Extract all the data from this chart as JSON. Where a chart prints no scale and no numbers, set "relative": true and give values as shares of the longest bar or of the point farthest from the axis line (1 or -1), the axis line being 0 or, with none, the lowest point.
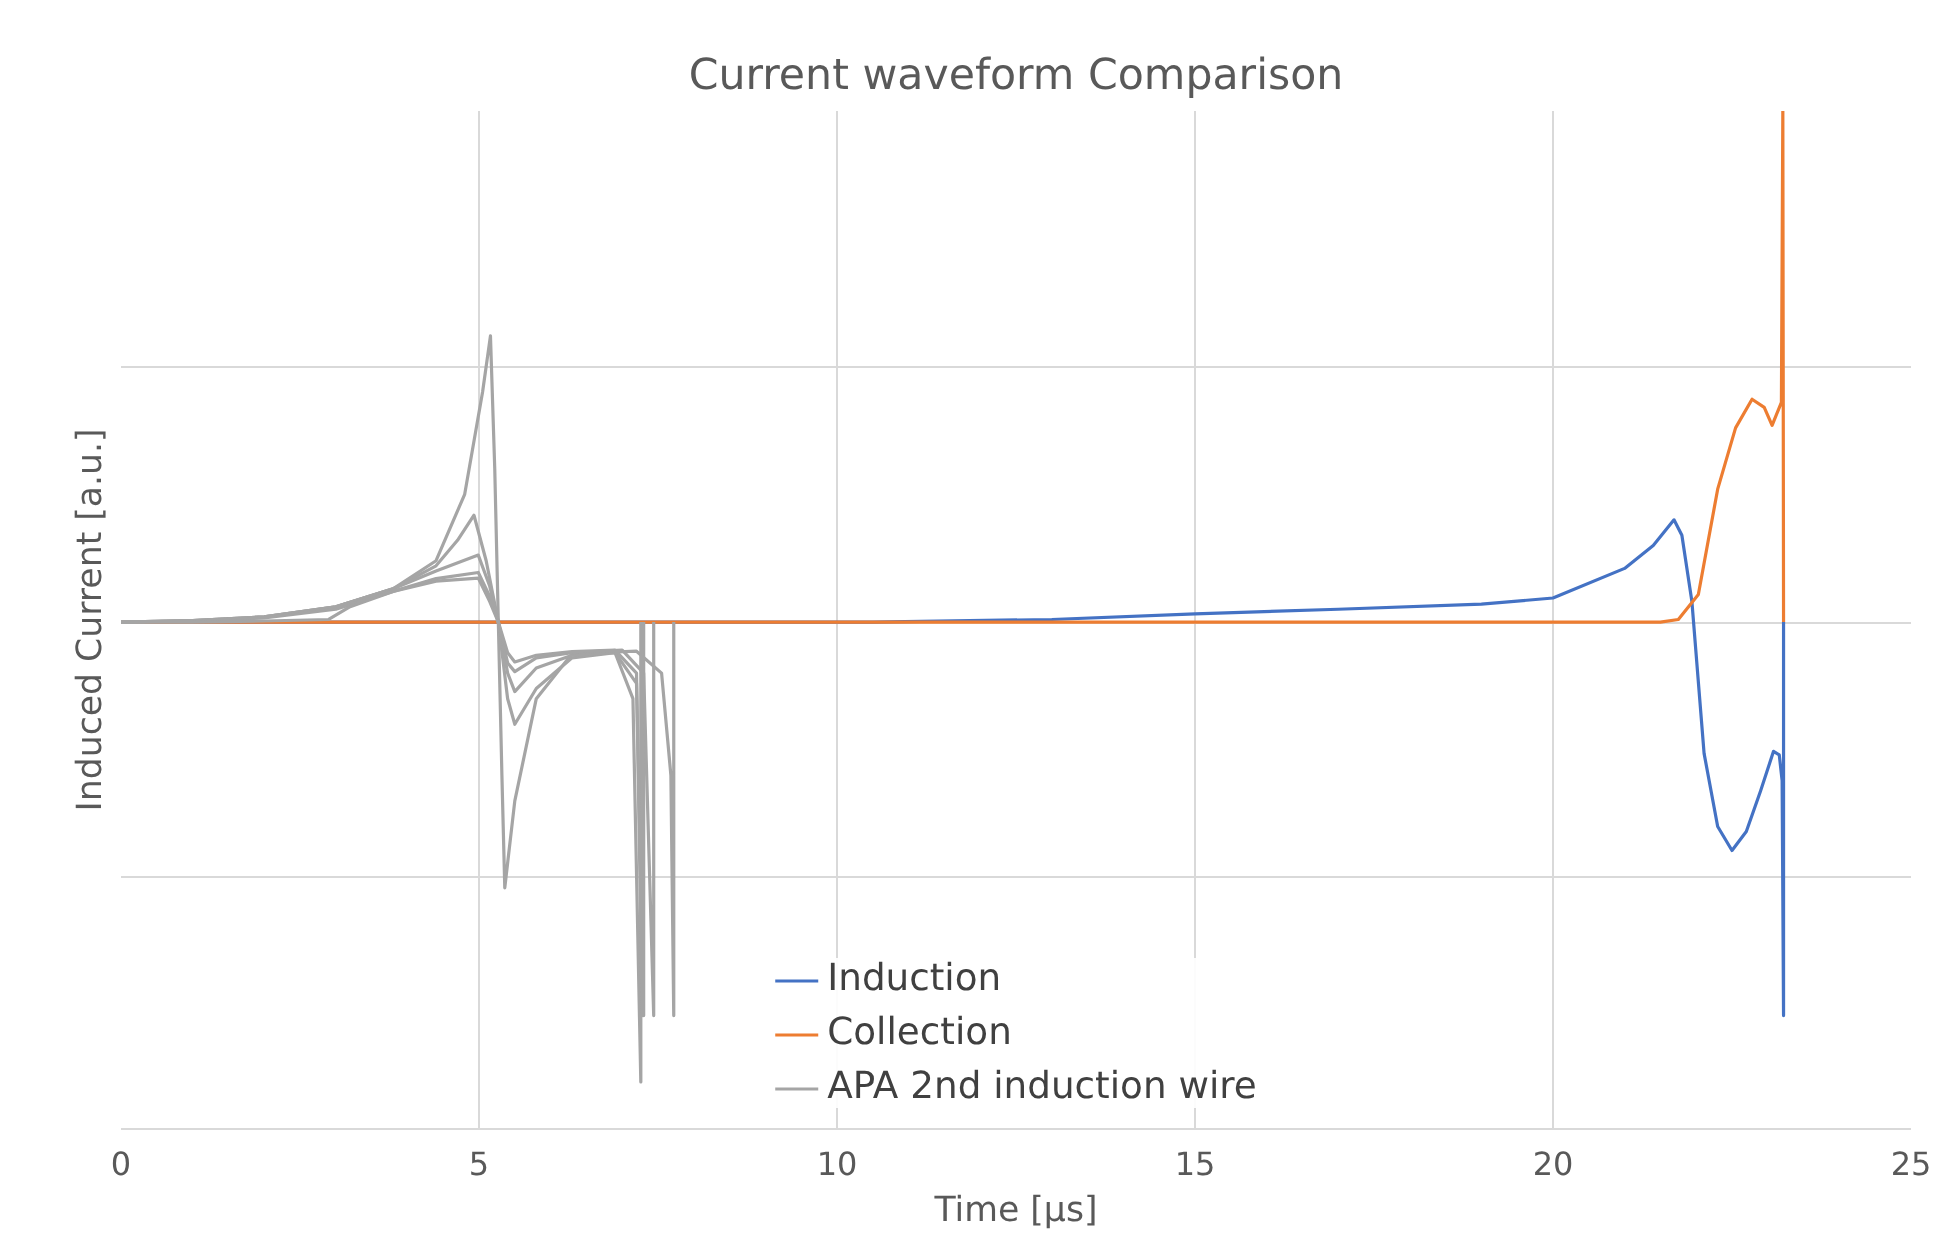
{
  "chart_data": {
    "type": "line",
    "title": "Current waveform Comparison",
    "xlabel": "Time [µs]",
    "ylabel": "Induced Current [a.u.]",
    "relative": true,
    "xlim": [
      0,
      25
    ],
    "xticks": [
      0,
      5,
      10,
      15,
      20,
      25
    ],
    "grid": true,
    "legend": "bottom",
    "line_style": "solid",
    "series": [
      {
        "name": "Induction",
        "color": "#4472c4",
        "x": [
          0,
          10.5,
          13,
          15,
          17,
          19,
          20,
          21,
          21.4,
          21.69,
          21.8,
          21.94,
          22.11,
          22.3,
          22.5,
          22.7,
          22.9,
          23.08,
          23.16,
          23.2,
          23.22,
          23.22
        ],
        "values": [
          0,
          0,
          0.005,
          0.016,
          0.025,
          0.035,
          0.047,
          0.105,
          0.15,
          0.2,
          0.17,
          0.04,
          -0.257,
          -0.4,
          -0.447,
          -0.41,
          -0.33,
          -0.253,
          -0.26,
          -0.31,
          -0.77,
          0
        ]
      },
      {
        "name": "Collection",
        "color": "#ed7d31",
        "x": [
          0,
          21.5,
          21.75,
          22.03,
          22.3,
          22.55,
          22.78,
          22.95,
          23.06,
          23.19,
          23.21,
          23.22
        ],
        "values": [
          0,
          0,
          0.005,
          0.054,
          0.26,
          0.38,
          0.436,
          0.42,
          0.385,
          0.43,
          1.0,
          0
        ]
      },
      {
        "name": "APA 2nd induction wire",
        "color": "#a5a5a5",
        "x": [
          0,
          1,
          2,
          3,
          3.8,
          4.4,
          4.8,
          5.05,
          5.16,
          5.22,
          5.27,
          5.32,
          5.36,
          5.5,
          5.8,
          6.3,
          7.2,
          7.55,
          7.68,
          7.72,
          7.72
        ],
        "values": [
          0,
          0.003,
          0.01,
          0.03,
          0.065,
          0.12,
          0.25,
          0.45,
          0.56,
          0.3,
          0,
          -0.3,
          -0.52,
          -0.35,
          -0.15,
          -0.062,
          -0.057,
          -0.1,
          -0.3,
          -0.77,
          0
        ]
      },
      {
        "color": "#a5a5a5",
        "x": [
          0,
          1,
          2,
          3,
          3.8,
          4.4,
          4.7,
          4.93,
          5.1,
          5.27,
          5.4,
          5.5,
          5.8,
          6.3,
          6.9,
          7.15,
          7.26,
          7.26
        ],
        "values": [
          0,
          0.003,
          0.01,
          0.03,
          0.065,
          0.11,
          0.16,
          0.209,
          0.12,
          0,
          -0.15,
          -0.2,
          -0.13,
          -0.07,
          -0.06,
          -0.15,
          -0.9,
          0
        ]
      },
      {
        "color": "#a5a5a5",
        "x": [
          0,
          1,
          2,
          3,
          3.8,
          4.4,
          4.99,
          5.15,
          5.27,
          5.4,
          5.5,
          5.8,
          6.3,
          6.9,
          7.2,
          7.3,
          7.3
        ],
        "values": [
          0,
          0.003,
          0.01,
          0.03,
          0.065,
          0.1,
          0.131,
          0.07,
          0,
          -0.1,
          -0.136,
          -0.09,
          -0.065,
          -0.06,
          -0.12,
          -0.77,
          0
        ]
      },
      {
        "color": "#a5a5a5",
        "x": [
          0,
          1,
          2,
          3,
          3.8,
          4.4,
          4.99,
          5.15,
          5.27,
          5.4,
          5.5,
          5.8,
          6.3,
          7.0,
          7.3,
          7.44,
          7.44
        ],
        "values": [
          0,
          0.002,
          0.008,
          0.025,
          0.06,
          0.085,
          0.097,
          0.05,
          0,
          -0.08,
          -0.097,
          -0.07,
          -0.06,
          -0.055,
          -0.1,
          -0.77,
          0
        ]
      },
      {
        "color": "#a5a5a5",
        "x": [
          0,
          1,
          2,
          2.9,
          3.2,
          3.8,
          4.4,
          4.99,
          5.15,
          5.27,
          5.4,
          5.5,
          5.8,
          6.3,
          6.9,
          7.2,
          7.28,
          7.28
        ],
        "values": [
          0,
          0,
          0.002,
          0.005,
          0.03,
          0.06,
          0.08,
          0.086,
          0.04,
          0,
          -0.06,
          -0.078,
          -0.065,
          -0.058,
          -0.055,
          -0.1,
          -0.77,
          0
        ]
      }
    ]
  }
}
